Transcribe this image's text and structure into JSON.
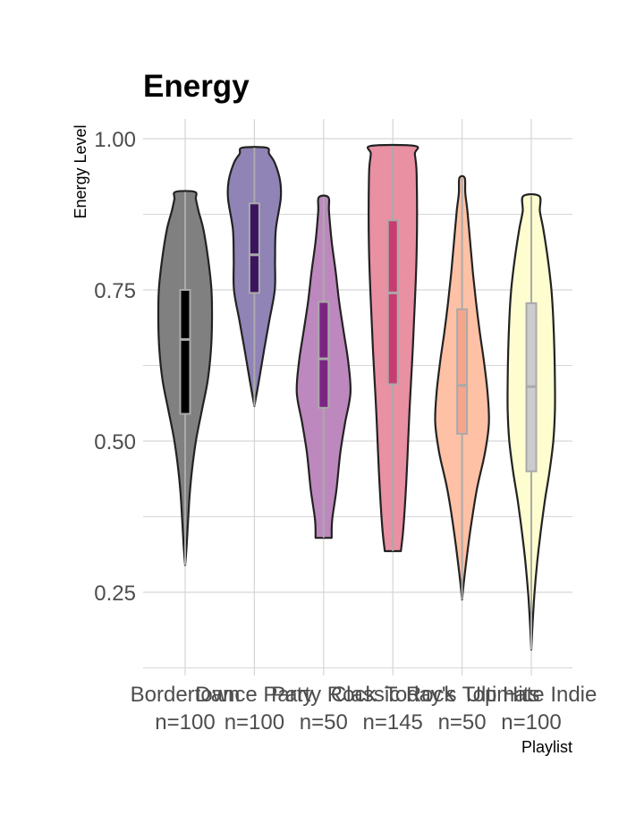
{
  "chart_data": {
    "type": "violin",
    "title": "Energy",
    "xlabel": "Playlist",
    "ylabel": "Energy Level",
    "ylim": [
      0.125,
      1.04
    ],
    "yticks": [
      0.25,
      0.5,
      0.75,
      1.0
    ],
    "ytick_labels": [
      "0.25",
      "0.50",
      "0.75",
      "1.00"
    ],
    "grid": true,
    "categories": [
      {
        "name": "Bordertown",
        "n_label": "n=100",
        "min": 0.295,
        "max": 0.912,
        "q1": 0.545,
        "median": 0.668,
        "q3": 0.75,
        "fill": "#808080",
        "box": "#000000",
        "profile": [
          [
            0.295,
            0.0
          ],
          [
            0.33,
            0.06
          ],
          [
            0.4,
            0.15
          ],
          [
            0.45,
            0.25
          ],
          [
            0.5,
            0.4
          ],
          [
            0.55,
            0.62
          ],
          [
            0.6,
            0.84
          ],
          [
            0.65,
            0.96
          ],
          [
            0.7,
            1.0
          ],
          [
            0.75,
            0.98
          ],
          [
            0.8,
            0.86
          ],
          [
            0.85,
            0.68
          ],
          [
            0.88,
            0.5
          ],
          [
            0.9,
            0.4
          ],
          [
            0.912,
            0.36
          ]
        ]
      },
      {
        "name": "Dance Party",
        "n_label": "n=100",
        "min": 0.558,
        "max": 0.985,
        "q1": 0.745,
        "median": 0.808,
        "q3": 0.893,
        "fill": "#9083b6",
        "box": "#3b1460",
        "profile": [
          [
            0.558,
            0.0
          ],
          [
            0.6,
            0.17
          ],
          [
            0.65,
            0.36
          ],
          [
            0.7,
            0.56
          ],
          [
            0.75,
            0.76
          ],
          [
            0.8,
            0.77
          ],
          [
            0.85,
            0.8
          ],
          [
            0.9,
            0.98
          ],
          [
            0.93,
            0.96
          ],
          [
            0.96,
            0.76
          ],
          [
            0.975,
            0.55
          ],
          [
            0.985,
            0.45
          ]
        ]
      },
      {
        "name": "Party Rock",
        "n_label": "n=50",
        "min": 0.34,
        "max": 0.903,
        "q1": 0.555,
        "median": 0.636,
        "q3": 0.73,
        "fill": "#bd88be",
        "box": "#7b2583",
        "profile": [
          [
            0.34,
            0.3
          ],
          [
            0.37,
            0.32
          ],
          [
            0.42,
            0.48
          ],
          [
            0.48,
            0.62
          ],
          [
            0.53,
            0.8
          ],
          [
            0.58,
            1.0
          ],
          [
            0.63,
            0.92
          ],
          [
            0.68,
            0.75
          ],
          [
            0.73,
            0.58
          ],
          [
            0.78,
            0.45
          ],
          [
            0.83,
            0.3
          ],
          [
            0.88,
            0.2
          ],
          [
            0.903,
            0.18
          ]
        ]
      },
      {
        "name": "Classic Rock",
        "n_label": "n=145",
        "min": 0.318,
        "max": 0.988,
        "q1": 0.594,
        "median": 0.745,
        "q3": 0.865,
        "fill": "#e990a3",
        "box": "#c83d6f",
        "profile": [
          [
            0.318,
            0.3
          ],
          [
            0.35,
            0.38
          ],
          [
            0.4,
            0.46
          ],
          [
            0.45,
            0.52
          ],
          [
            0.5,
            0.57
          ],
          [
            0.55,
            0.62
          ],
          [
            0.6,
            0.68
          ],
          [
            0.65,
            0.74
          ],
          [
            0.7,
            0.79
          ],
          [
            0.75,
            0.84
          ],
          [
            0.8,
            0.88
          ],
          [
            0.85,
            0.9
          ],
          [
            0.9,
            0.9
          ],
          [
            0.95,
            0.88
          ],
          [
            0.975,
            0.82
          ],
          [
            0.988,
            0.82
          ]
        ]
      },
      {
        "name": "Today's Top Hits",
        "n_label": "n=50",
        "min": 0.238,
        "max": 0.935,
        "q1": 0.512,
        "median": 0.592,
        "q3": 0.718,
        "fill": "#fec1a5",
        "box": "#f4a68a",
        "profile": [
          [
            0.238,
            0.0
          ],
          [
            0.28,
            0.1
          ],
          [
            0.35,
            0.3
          ],
          [
            0.42,
            0.55
          ],
          [
            0.48,
            0.85
          ],
          [
            0.53,
            1.0
          ],
          [
            0.58,
            0.95
          ],
          [
            0.63,
            0.82
          ],
          [
            0.68,
            0.66
          ],
          [
            0.73,
            0.52
          ],
          [
            0.78,
            0.4
          ],
          [
            0.83,
            0.3
          ],
          [
            0.88,
            0.2
          ],
          [
            0.91,
            0.12
          ],
          [
            0.935,
            0.1
          ]
        ]
      },
      {
        "name": "Ultimate Indie",
        "n_label": "n=100",
        "min": 0.155,
        "max": 0.905,
        "q1": 0.45,
        "median": 0.59,
        "q3": 0.728,
        "fill": "#fdfdd0",
        "box": "#cccccc",
        "profile": [
          [
            0.155,
            0.0
          ],
          [
            0.2,
            0.05
          ],
          [
            0.25,
            0.12
          ],
          [
            0.3,
            0.22
          ],
          [
            0.35,
            0.35
          ],
          [
            0.4,
            0.5
          ],
          [
            0.45,
            0.68
          ],
          [
            0.5,
            0.82
          ],
          [
            0.55,
            0.88
          ],
          [
            0.6,
            0.88
          ],
          [
            0.65,
            0.86
          ],
          [
            0.7,
            0.82
          ],
          [
            0.75,
            0.75
          ],
          [
            0.8,
            0.62
          ],
          [
            0.85,
            0.45
          ],
          [
            0.88,
            0.32
          ],
          [
            0.905,
            0.3
          ]
        ]
      }
    ]
  }
}
